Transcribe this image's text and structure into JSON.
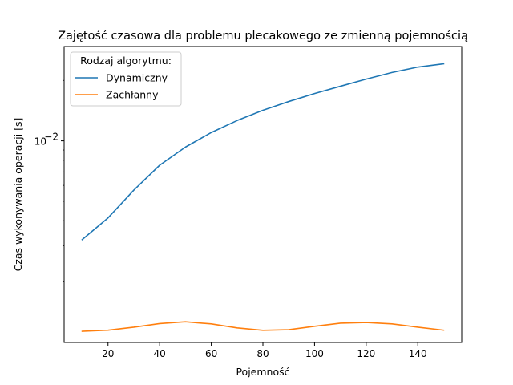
{
  "chart_data": {
    "type": "line",
    "title": "Zajętość czasowa dla problemu plecakowego ze zmienną pojemnością",
    "xlabel": "Pojemność",
    "ylabel": "Czas wykonywania operacji [s]",
    "x": [
      10,
      20,
      30,
      40,
      50,
      60,
      70,
      80,
      90,
      100,
      110,
      120,
      130,
      140,
      150
    ],
    "xlim": [
      3,
      157
    ],
    "xticks": [
      20,
      40,
      60,
      80,
      100,
      120,
      140
    ],
    "yscale": "log",
    "ylim": [
      0.00099,
      0.0295
    ],
    "yticks": [
      {
        "value": 0.01,
        "base": "10",
        "exponent": "−2"
      }
    ],
    "legend": {
      "title": "Rodzaj algorytmu:",
      "placement": "top-left"
    },
    "grid": false,
    "series": [
      {
        "name": "Dynamiczny",
        "color": "#1f77b4",
        "values": [
          0.00322,
          0.00413,
          0.00568,
          0.00756,
          0.00931,
          0.011,
          0.01262,
          0.0142,
          0.0157,
          0.0172,
          0.0187,
          0.0203,
          0.0219,
          0.0233,
          0.0242
        ]
      },
      {
        "name": "Zachłanny",
        "color": "#ff7f0e",
        "values": [
          0.001125,
          0.00114,
          0.00118,
          0.00123,
          0.001255,
          0.001225,
          0.00117,
          0.001138,
          0.001146,
          0.001192,
          0.001235,
          0.001245,
          0.001225,
          0.00118,
          0.00114
        ]
      }
    ]
  }
}
